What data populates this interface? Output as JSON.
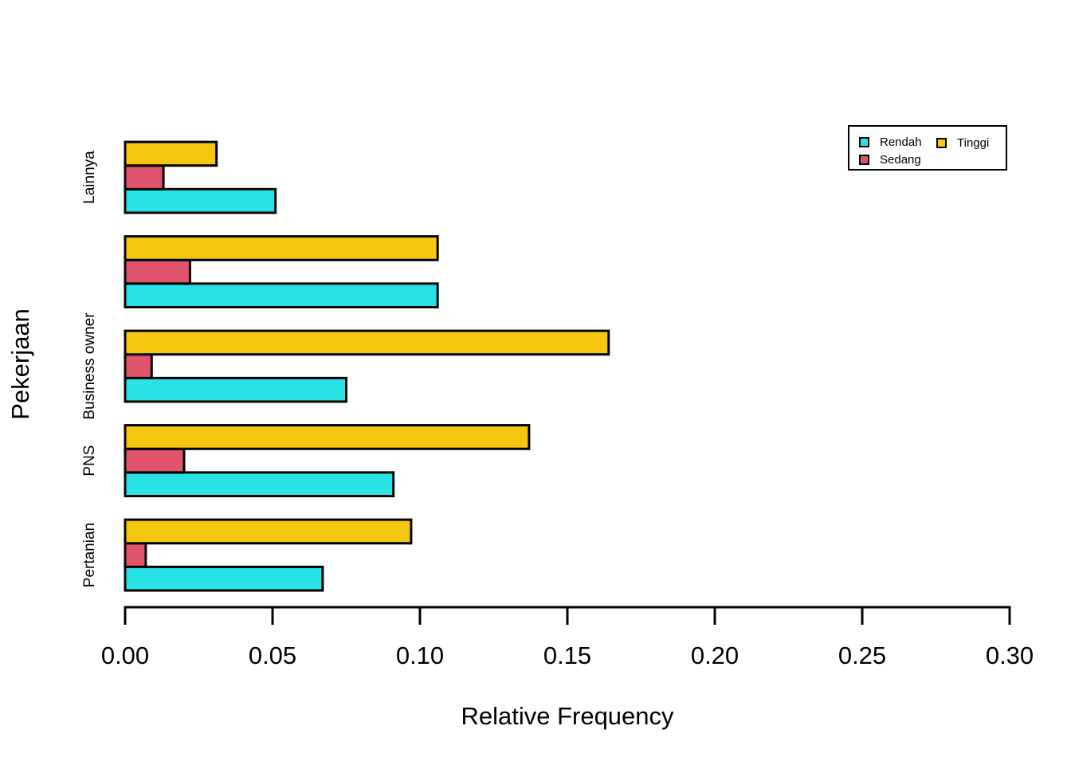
{
  "chart_data": {
    "type": "bar",
    "orientation": "horizontal",
    "title": "",
    "xlabel": "Relative Frequency",
    "ylabel": "Pekerjaan",
    "xlim": [
      0,
      0.3
    ],
    "x_ticks": [
      "0.00",
      "0.05",
      "0.10",
      "0.15",
      "0.20",
      "0.25",
      "0.30"
    ],
    "grid": false,
    "legend_position": "top-right",
    "categories": [
      "Lainnya",
      "",
      "Business owner",
      "PNS",
      "Pertanian"
    ],
    "categories_order": "top-to-bottom",
    "bar_order_within_group_bottom_to_top": [
      "Rendah",
      "Sedang",
      "Tinggi"
    ],
    "series": [
      {
        "name": "Rendah",
        "color": "#28E2E5",
        "values": [
          0.051,
          0.106,
          0.075,
          0.091,
          0.067
        ]
      },
      {
        "name": "Sedang",
        "color": "#DF536B",
        "values": [
          0.013,
          0.022,
          0.009,
          0.02,
          0.007
        ]
      },
      {
        "name": "Tinggi",
        "color": "#F5C710",
        "values": [
          0.031,
          0.106,
          0.164,
          0.137,
          0.097
        ]
      }
    ],
    "legend_columns": [
      [
        "Rendah",
        "Sedang"
      ],
      [
        "Tinggi"
      ]
    ],
    "colors": {
      "bar_border": "#000000",
      "axis": "#000000",
      "background": "#ffffff"
    }
  }
}
